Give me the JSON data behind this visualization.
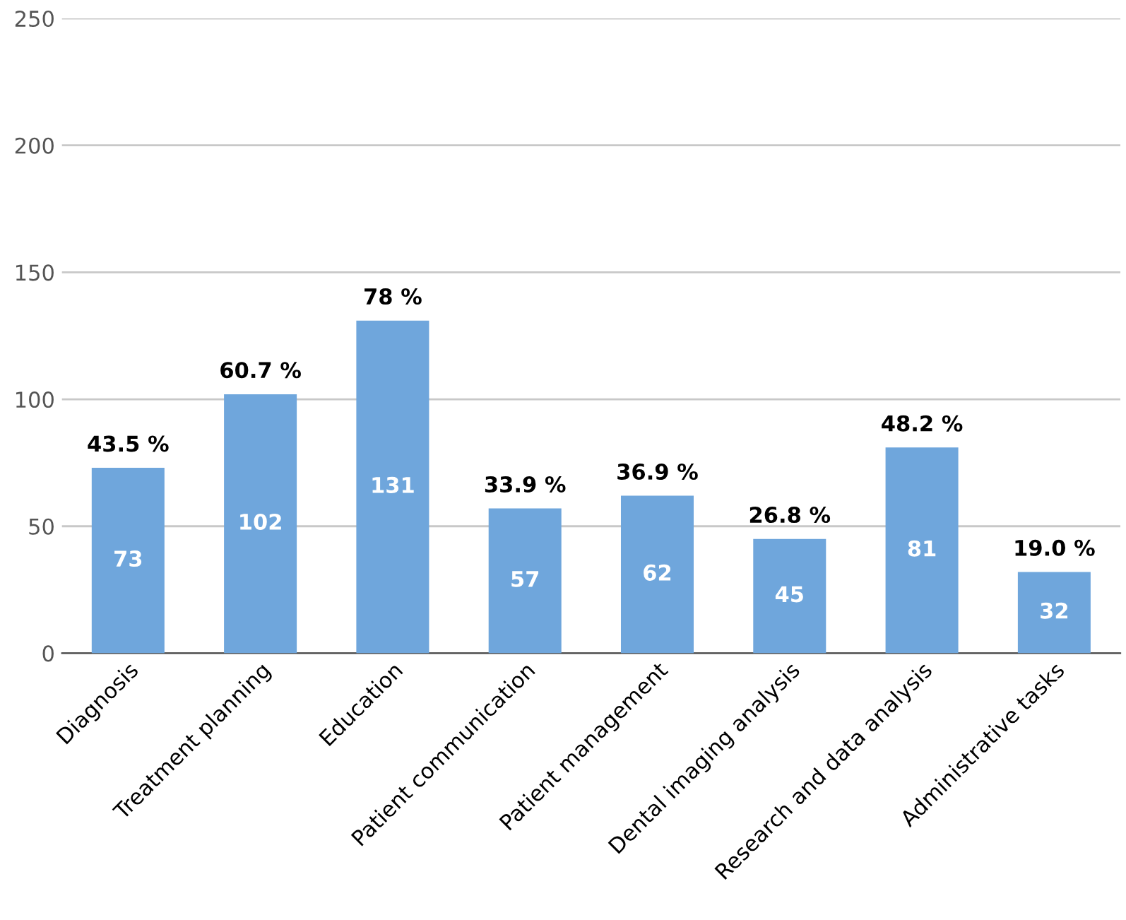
{
  "chart_data": {
    "type": "bar",
    "categories": [
      "Diagnosis",
      "Treatment planning",
      "Education",
      "Patient communication",
      "Patient management",
      "Dental imaging analysis",
      "Research and data analysis",
      "Administrative tasks"
    ],
    "values": [
      73,
      102,
      131,
      57,
      62,
      45,
      81,
      32
    ],
    "color": "#6fa6dc",
    "data_labels": true,
    "annotations": [
      {
        "text": "43.5 %",
        "x": "Diagnosis",
        "y": 73
      },
      {
        "text": "60.7 %",
        "x": "Treatment planning",
        "y": 102
      },
      {
        "text": "78 %",
        "x": "Education",
        "y": 131
      },
      {
        "text": "33.9 %",
        "x": "Patient communication",
        "y": 57
      },
      {
        "text": "36.9 %",
        "x": "Patient management",
        "y": 62
      },
      {
        "text": "26.8 %",
        "x": "Dental imaging analysis",
        "y": 45
      },
      {
        "text": "48.2 %",
        "x": "Research and data analysis",
        "y": 81
      },
      {
        "text": "19.0 %",
        "x": "Administrative tasks",
        "y": 32
      }
    ],
    "ylim": [
      0,
      250
    ],
    "yticks": [
      0,
      50,
      100,
      150,
      200,
      250
    ],
    "grid": "y",
    "legend": false
  }
}
